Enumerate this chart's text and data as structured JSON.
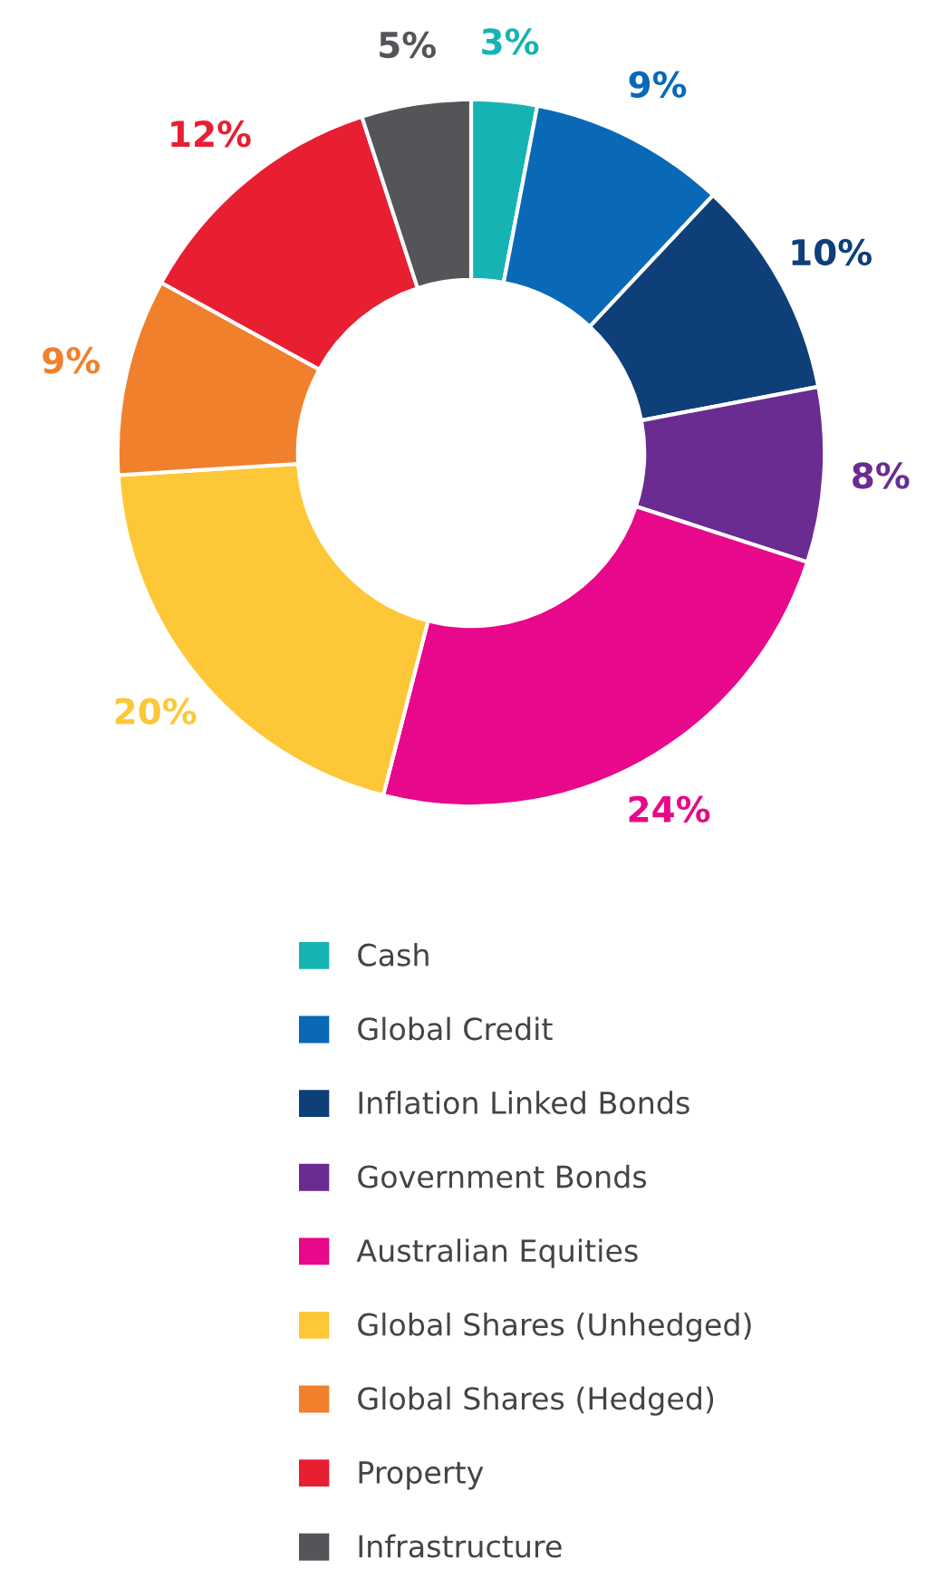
{
  "chart_data": {
    "type": "donut",
    "categories": [
      "Cash",
      "Global Credit",
      "Inflation Linked Bonds",
      "Government Bonds",
      "Australian Equities",
      "Global Shares (Unhedged)",
      "Global Shares (Hedged)",
      "Property",
      "Infrastructure"
    ],
    "values": [
      3,
      9,
      10,
      8,
      24,
      20,
      9,
      12,
      5
    ],
    "value_labels": [
      "3%",
      "9%",
      "10%",
      "8%",
      "24%",
      "20%",
      "9%",
      "12%",
      "5%"
    ],
    "colors": [
      "#16b3b3",
      "#0a69b7",
      "#0e3f78",
      "#6a2c90",
      "#e8088b",
      "#fdc737",
      "#f0802c",
      "#e81e31",
      "#545558"
    ],
    "legend": "bottom"
  }
}
